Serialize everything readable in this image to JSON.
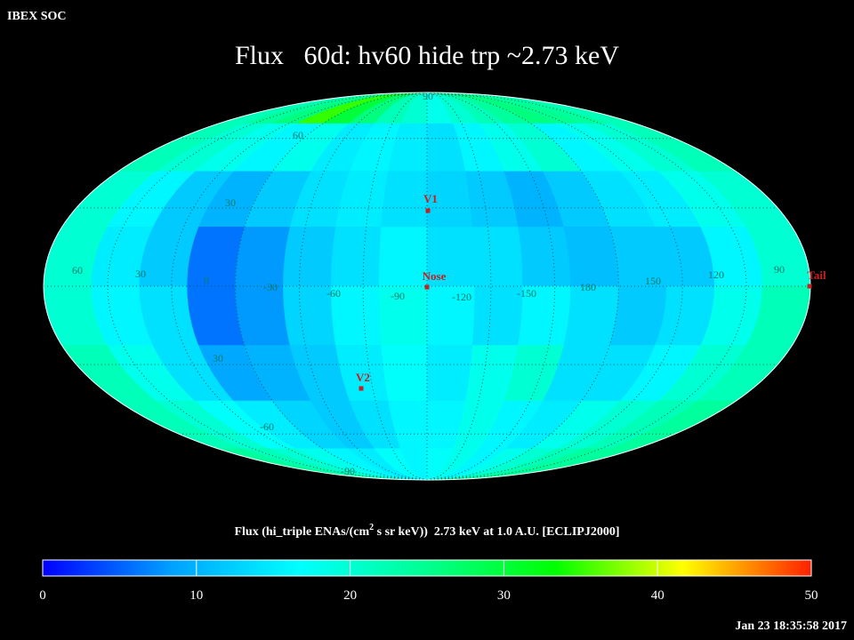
{
  "header": {
    "corner_label": "IBEX SOC",
    "title": "Flux   60d: hv60 hide trp ~2.73 keV",
    "timestamp": "Jan 23 18:35:58 2017"
  },
  "sky_map": {
    "values": [
      [
        22,
        24,
        26,
        35,
        30,
        26,
        22,
        20,
        18,
        20,
        22,
        24,
        26,
        25,
        24,
        22
      ],
      [
        22,
        20,
        18,
        16,
        18,
        15,
        16,
        15,
        14,
        16,
        18,
        20,
        16,
        18,
        20,
        22
      ],
      [
        20,
        16,
        12,
        10,
        12,
        14,
        15,
        14,
        13,
        12,
        10,
        12,
        14,
        15,
        18,
        20
      ],
      [
        20,
        15,
        12,
        6,
        8,
        12,
        14,
        16,
        14,
        14,
        12,
        11,
        12,
        12,
        16,
        20
      ],
      [
        20,
        16,
        14,
        6,
        8,
        13,
        16,
        18,
        16,
        14,
        16,
        14,
        12,
        14,
        18,
        22
      ],
      [
        22,
        18,
        14,
        9,
        10,
        12,
        15,
        17,
        15,
        18,
        20,
        14,
        14,
        16,
        20,
        22
      ],
      [
        22,
        20,
        17,
        15,
        13,
        12,
        14,
        16,
        16,
        18,
        16,
        15,
        18,
        20,
        22,
        24
      ],
      [
        24,
        22,
        20,
        18,
        16,
        15,
        17,
        16,
        17,
        18,
        16,
        18,
        20,
        22,
        24,
        24
      ]
    ],
    "graticule_labels": [
      "90",
      "60",
      "30",
      "60",
      "30",
      "0",
      "-30",
      "-60",
      "-90",
      "-120",
      "-150",
      "180",
      "150",
      "120",
      "90",
      "30",
      "-60",
      "-90"
    ],
    "markers": [
      "V1",
      "Nose",
      "V2",
      "Tail"
    ]
  },
  "colorbar": {
    "label_parts": [
      "Flux (hi_triple ENAs/(cm",
      "2",
      " s sr keV))  2.73 keV at 1.0 A.U. [ECLIPJ2000]"
    ],
    "range": [
      0,
      50
    ],
    "ticks": [
      0,
      10,
      20,
      30,
      40,
      50
    ],
    "colors": [
      "#0000ff",
      "#00a0ff",
      "#00ffff",
      "#00ff90",
      "#00ff00",
      "#ffff00",
      "#ff2000"
    ]
  }
}
